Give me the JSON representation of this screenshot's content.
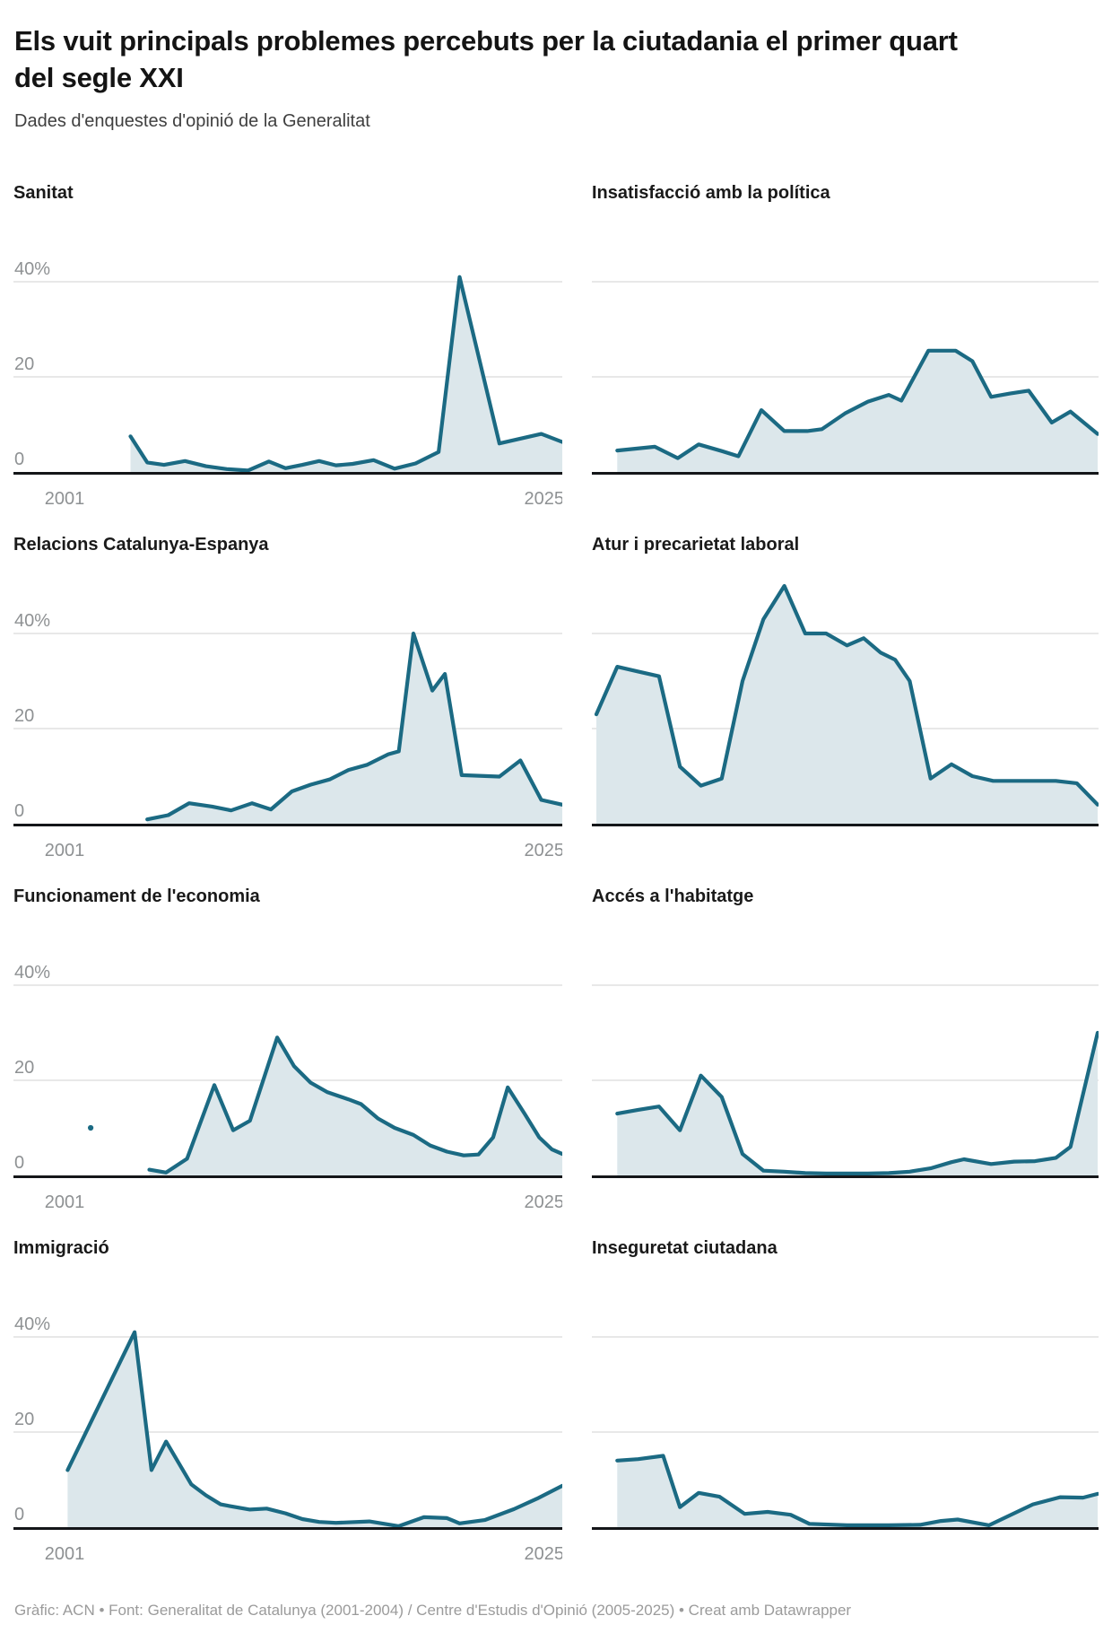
{
  "header": {
    "title": "Els vuit principals problemes percebuts per la ciutadania el primer quart del segle XXI",
    "subtitle": "Dades d'enquestes d'opinió de la Generalitat"
  },
  "footer": {
    "credit": "Gràfic: ACN • Font: Generalitat de Catalunya (2001-2004) / Centre d'Estudis d'Opinió (2005-2025) • Creat amb Datawrapper"
  },
  "colors": {
    "line": "#1B6A83",
    "area": "#DCE7EB",
    "grid": "#E0E0E0",
    "baseline": "#141619",
    "tick_label": "#8E9193",
    "panel_title": "#1A1A1A"
  },
  "axes": {
    "x_domain": [
      2001,
      2025
    ],
    "x_start_label": "2001",
    "x_end_label": "2025",
    "unit": "%",
    "y_ticks": [
      {
        "value": 40,
        "label": "40%"
      },
      {
        "value": 20,
        "label": "20"
      },
      {
        "value": 0,
        "label": "0"
      }
    ]
  },
  "chart_data": [
    {
      "type": "area",
      "title": "Sanitat",
      "column": "left",
      "show_axis_labels": true,
      "points": [
        [
          2004.4,
          7.5
        ],
        [
          2005.2,
          2
        ],
        [
          2006,
          1.5
        ],
        [
          2007,
          2.3
        ],
        [
          2008,
          1.2
        ],
        [
          2009,
          0.6
        ],
        [
          2010,
          0.3
        ],
        [
          2011,
          2.2
        ],
        [
          2011.8,
          0.8
        ],
        [
          2012.6,
          1.5
        ],
        [
          2013.4,
          2.3
        ],
        [
          2014.2,
          1.4
        ],
        [
          2015,
          1.7
        ],
        [
          2016,
          2.5
        ],
        [
          2017,
          0.7
        ],
        [
          2018,
          1.8
        ],
        [
          2019.1,
          4.2
        ],
        [
          2020.1,
          41
        ],
        [
          2022,
          6
        ],
        [
          2024,
          8
        ],
        [
          2025,
          6.3
        ]
      ]
    },
    {
      "type": "area",
      "title": "Insatisfacció amb la política",
      "column": "right",
      "show_axis_labels": false,
      "points": [
        [
          2002,
          4.5
        ],
        [
          2003.8,
          5.3
        ],
        [
          2004.9,
          2.9
        ],
        [
          2005.9,
          5.8
        ],
        [
          2007,
          4.4
        ],
        [
          2007.8,
          3.3
        ],
        [
          2008.9,
          13
        ],
        [
          2010,
          8.6
        ],
        [
          2011.1,
          8.6
        ],
        [
          2011.8,
          9
        ],
        [
          2012.9,
          12.3
        ],
        [
          2014,
          14.8
        ],
        [
          2015,
          16.2
        ],
        [
          2015.6,
          15
        ],
        [
          2016.9,
          25.5
        ],
        [
          2018.2,
          25.5
        ],
        [
          2019,
          23.3
        ],
        [
          2019.9,
          15.8
        ],
        [
          2020.8,
          16.5
        ],
        [
          2021.7,
          17.1
        ],
        [
          2022.8,
          10.4
        ],
        [
          2023.7,
          12.7
        ],
        [
          2025,
          8
        ]
      ]
    },
    {
      "type": "area",
      "title": "Relacions Catalunya-Espanya",
      "column": "left",
      "show_axis_labels": true,
      "points": [
        [
          2005.2,
          0.9
        ],
        [
          2006.2,
          1.8
        ],
        [
          2007.2,
          4.3
        ],
        [
          2008.3,
          3.6
        ],
        [
          2009.2,
          2.8
        ],
        [
          2010.2,
          4.3
        ],
        [
          2011.1,
          3
        ],
        [
          2012.1,
          6.8
        ],
        [
          2013,
          8.2
        ],
        [
          2013.9,
          9.3
        ],
        [
          2014.8,
          11.3
        ],
        [
          2015.7,
          12.4
        ],
        [
          2016.7,
          14.6
        ],
        [
          2017.2,
          15.2
        ],
        [
          2017.9,
          40
        ],
        [
          2018.8,
          28
        ],
        [
          2019.4,
          31.5
        ],
        [
          2020.2,
          10.2
        ],
        [
          2022,
          9.9
        ],
        [
          2023,
          13.3
        ],
        [
          2024,
          5
        ],
        [
          2025,
          4
        ]
      ]
    },
    {
      "type": "area",
      "title": "Atur i precarietat laboral",
      "column": "right",
      "show_axis_labels": false,
      "points": [
        [
          2001,
          23
        ],
        [
          2002,
          33
        ],
        [
          2003,
          32
        ],
        [
          2004,
          31
        ],
        [
          2005,
          12
        ],
        [
          2006,
          8
        ],
        [
          2007,
          9.5
        ],
        [
          2008,
          30
        ],
        [
          2009,
          43
        ],
        [
          2010,
          50
        ],
        [
          2011,
          40
        ],
        [
          2012,
          40
        ],
        [
          2013,
          37.5
        ],
        [
          2013.8,
          39
        ],
        [
          2014.6,
          36
        ],
        [
          2015.3,
          34.5
        ],
        [
          2016,
          30
        ],
        [
          2017,
          9.5
        ],
        [
          2018,
          12.5
        ],
        [
          2019,
          10
        ],
        [
          2020,
          9
        ],
        [
          2021,
          9
        ],
        [
          2022,
          9
        ],
        [
          2023,
          9
        ],
        [
          2024,
          8.5
        ],
        [
          2025,
          4
        ]
      ]
    },
    {
      "type": "area",
      "title": "Funcionament de l'economia",
      "column": "left",
      "show_axis_labels": true,
      "isolated_points": [
        [
          2002.5,
          10
        ]
      ],
      "points": [
        [
          2005.3,
          1.2
        ],
        [
          2006.1,
          0.6
        ],
        [
          2007.1,
          3.5
        ],
        [
          2008.4,
          19
        ],
        [
          2009.3,
          9.5
        ],
        [
          2010.1,
          11.5
        ],
        [
          2011.4,
          29
        ],
        [
          2012.2,
          23
        ],
        [
          2013,
          19.5
        ],
        [
          2013.8,
          17.5
        ],
        [
          2014.8,
          16
        ],
        [
          2015.4,
          15
        ],
        [
          2016.2,
          12
        ],
        [
          2017,
          10
        ],
        [
          2017.9,
          8.5
        ],
        [
          2018.7,
          6.3
        ],
        [
          2019.5,
          5
        ],
        [
          2020.3,
          4.2
        ],
        [
          2021,
          4.4
        ],
        [
          2021.7,
          8
        ],
        [
          2022.4,
          18.5
        ],
        [
          2023.2,
          13
        ],
        [
          2023.9,
          8
        ],
        [
          2024.5,
          5.5
        ],
        [
          2025,
          4.5
        ]
      ]
    },
    {
      "type": "area",
      "title": "Accés a l'habitatge",
      "column": "right",
      "show_axis_labels": false,
      "points": [
        [
          2002,
          13
        ],
        [
          2003,
          13.8
        ],
        [
          2004,
          14.5
        ],
        [
          2005,
          9.5
        ],
        [
          2006,
          21
        ],
        [
          2007,
          16.5
        ],
        [
          2008,
          4.5
        ],
        [
          2009,
          1
        ],
        [
          2010,
          0.8
        ],
        [
          2011,
          0.5
        ],
        [
          2012,
          0.4
        ],
        [
          2013,
          0.4
        ],
        [
          2014,
          0.4
        ],
        [
          2015,
          0.5
        ],
        [
          2016,
          0.8
        ],
        [
          2017,
          1.5
        ],
        [
          2018,
          2.8
        ],
        [
          2018.6,
          3.4
        ],
        [
          2019.9,
          2.4
        ],
        [
          2021,
          2.9
        ],
        [
          2022,
          3
        ],
        [
          2023,
          3.7
        ],
        [
          2023.7,
          6
        ],
        [
          2025,
          30
        ]
      ]
    },
    {
      "type": "area",
      "title": "Immigració",
      "column": "left",
      "show_axis_labels": true,
      "points": [
        [
          2001.4,
          12
        ],
        [
          2004.6,
          41
        ],
        [
          2005.4,
          12
        ],
        [
          2006.1,
          18
        ],
        [
          2007.3,
          9
        ],
        [
          2008,
          6.7
        ],
        [
          2008.7,
          4.8
        ],
        [
          2009.3,
          4.3
        ],
        [
          2010.1,
          3.7
        ],
        [
          2010.9,
          3.9
        ],
        [
          2011.8,
          2.9
        ],
        [
          2012.6,
          1.7
        ],
        [
          2013.4,
          1.1
        ],
        [
          2014.2,
          0.9
        ],
        [
          2015.8,
          1.2
        ],
        [
          2017.2,
          0.2
        ],
        [
          2018.4,
          2.1
        ],
        [
          2019.5,
          1.9
        ],
        [
          2020.1,
          0.8
        ],
        [
          2021.3,
          1.5
        ],
        [
          2022.7,
          3.8
        ],
        [
          2023.8,
          6
        ],
        [
          2025,
          8.7
        ]
      ]
    },
    {
      "type": "area",
      "title": "Inseguretat ciutadana",
      "column": "right",
      "show_axis_labels": false,
      "points": [
        [
          2002,
          14
        ],
        [
          2003,
          14.3
        ],
        [
          2004.2,
          15
        ],
        [
          2005,
          4.2
        ],
        [
          2005.9,
          7.2
        ],
        [
          2006.9,
          6.4
        ],
        [
          2008.1,
          2.8
        ],
        [
          2009.2,
          3.2
        ],
        [
          2010.3,
          2.6
        ],
        [
          2011.2,
          0.7
        ],
        [
          2013,
          0.4
        ],
        [
          2015,
          0.4
        ],
        [
          2016.5,
          0.5
        ],
        [
          2017.5,
          1.3
        ],
        [
          2018.3,
          1.6
        ],
        [
          2019.8,
          0.4
        ],
        [
          2021.9,
          4.8
        ],
        [
          2023.2,
          6.3
        ],
        [
          2024.3,
          6.2
        ],
        [
          2025,
          7
        ]
      ]
    }
  ]
}
